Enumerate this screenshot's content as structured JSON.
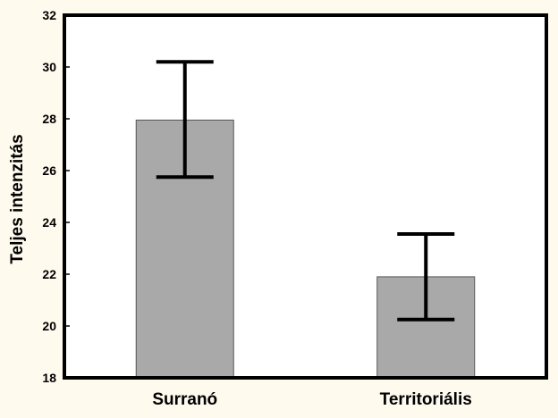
{
  "chart_data": {
    "type": "bar",
    "title": "",
    "xlabel": "",
    "ylabel": "Teljes intenzitás",
    "categories": [
      "Surranó",
      "Territoriális"
    ],
    "values": [
      27.95,
      21.9
    ],
    "error_low": [
      25.75,
      20.25
    ],
    "error_high": [
      30.2,
      23.55
    ],
    "ylim": [
      18,
      32
    ],
    "yticks": [
      18,
      20,
      22,
      24,
      26,
      28,
      30,
      32
    ],
    "grid": false,
    "legend": "none",
    "colors": {
      "bar": "#a9a9a9",
      "bar_edge": "#555555",
      "error_bar": "#000000",
      "plot_background": "#ffffff",
      "page_background": "#fffaee"
    }
  }
}
